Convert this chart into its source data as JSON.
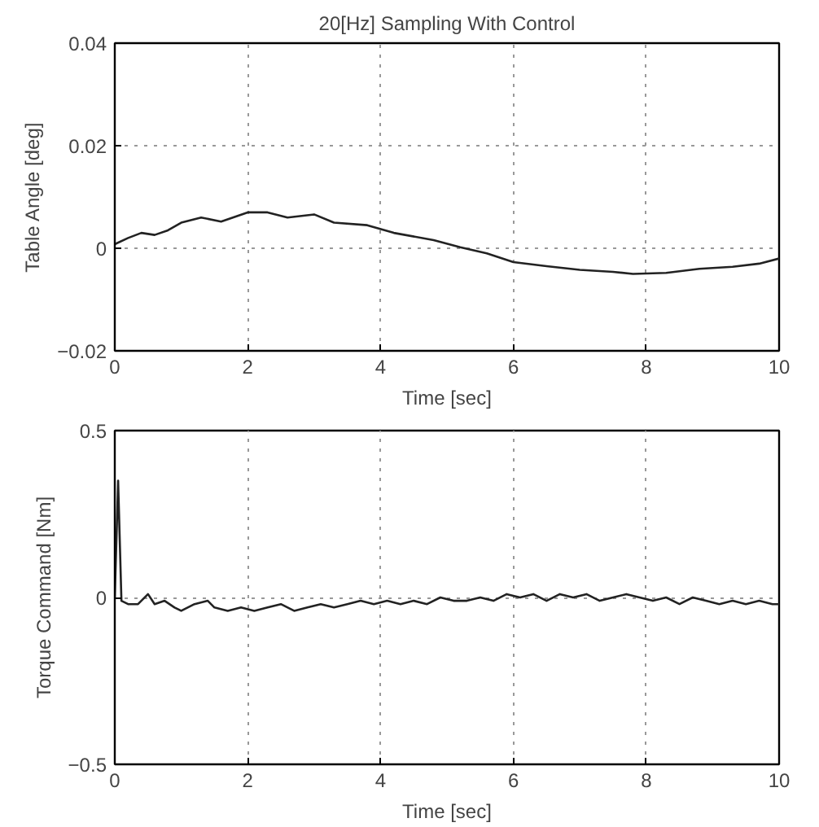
{
  "chart_data": [
    {
      "type": "line",
      "title": "20[Hz] Sampling With Control",
      "xlabel": "Time [sec]",
      "ylabel": "Table Angle [deg]",
      "xlim": [
        0,
        10
      ],
      "ylim": [
        -0.02,
        0.04
      ],
      "xticks": [
        0,
        2,
        4,
        6,
        8,
        10
      ],
      "yticks": [
        -0.02,
        0,
        0.02,
        0.04
      ],
      "grid": true,
      "line_style": "solid",
      "marker": "none",
      "series": [
        {
          "color": "#222222",
          "x": [
            0,
            0.2,
            0.4,
            0.6,
            0.8,
            1.0,
            1.3,
            1.6,
            2.0,
            2.3,
            2.6,
            3.0,
            3.3,
            3.8,
            4.2,
            4.8,
            5.2,
            5.6,
            6.0,
            6.5,
            7.0,
            7.5,
            7.8,
            8.3,
            8.8,
            9.3,
            9.7,
            10
          ],
          "values": [
            0.0008,
            0.002,
            0.003,
            0.0026,
            0.0035,
            0.005,
            0.006,
            0.0052,
            0.007,
            0.007,
            0.006,
            0.0066,
            0.005,
            0.0045,
            0.003,
            0.0016,
            0.0002,
            -0.001,
            -0.0027,
            -0.0035,
            -0.0042,
            -0.0046,
            -0.005,
            -0.0048,
            -0.004,
            -0.0036,
            -0.003,
            -0.002
          ]
        }
      ]
    },
    {
      "type": "line",
      "xlabel": "Time [sec]",
      "ylabel": "Torque Command [Nm]",
      "xlim": [
        0,
        10
      ],
      "ylim": [
        -0.5,
        0.5
      ],
      "xticks": [
        0,
        2,
        4,
        6,
        8,
        10
      ],
      "yticks": [
        -0.5,
        0,
        0.5
      ],
      "grid": true,
      "line_style": "solid",
      "marker": "none",
      "series": [
        {
          "color": "#222222",
          "x": [
            0,
            0.05,
            0.1,
            0.2,
            0.35,
            0.5,
            0.6,
            0.75,
            0.9,
            1.0,
            1.2,
            1.4,
            1.5,
            1.7,
            1.9,
            2.1,
            2.3,
            2.5,
            2.7,
            2.9,
            3.1,
            3.3,
            3.5,
            3.7,
            3.9,
            4.1,
            4.3,
            4.5,
            4.7,
            4.9,
            5.1,
            5.3,
            5.5,
            5.7,
            5.9,
            6.1,
            6.3,
            6.5,
            6.7,
            6.9,
            7.1,
            7.3,
            7.5,
            7.7,
            7.9,
            8.1,
            8.3,
            8.5,
            8.7,
            8.9,
            9.1,
            9.3,
            9.5,
            9.7,
            9.9,
            10
          ],
          "values": [
            0.0,
            0.35,
            -0.01,
            -0.02,
            -0.02,
            0.01,
            -0.02,
            -0.01,
            -0.03,
            -0.04,
            -0.02,
            -0.01,
            -0.03,
            -0.04,
            -0.03,
            -0.04,
            -0.03,
            -0.02,
            -0.04,
            -0.03,
            -0.02,
            -0.03,
            -0.02,
            -0.01,
            -0.02,
            -0.01,
            -0.02,
            -0.01,
            -0.02,
            0.0,
            -0.01,
            -0.01,
            0.0,
            -0.01,
            0.01,
            0.0,
            0.01,
            -0.01,
            0.01,
            0.0,
            0.01,
            -0.01,
            0.0,
            0.01,
            0.0,
            -0.01,
            0.0,
            -0.02,
            0.0,
            -0.01,
            -0.02,
            -0.01,
            -0.02,
            -0.01,
            -0.02,
            -0.02
          ]
        }
      ]
    }
  ]
}
